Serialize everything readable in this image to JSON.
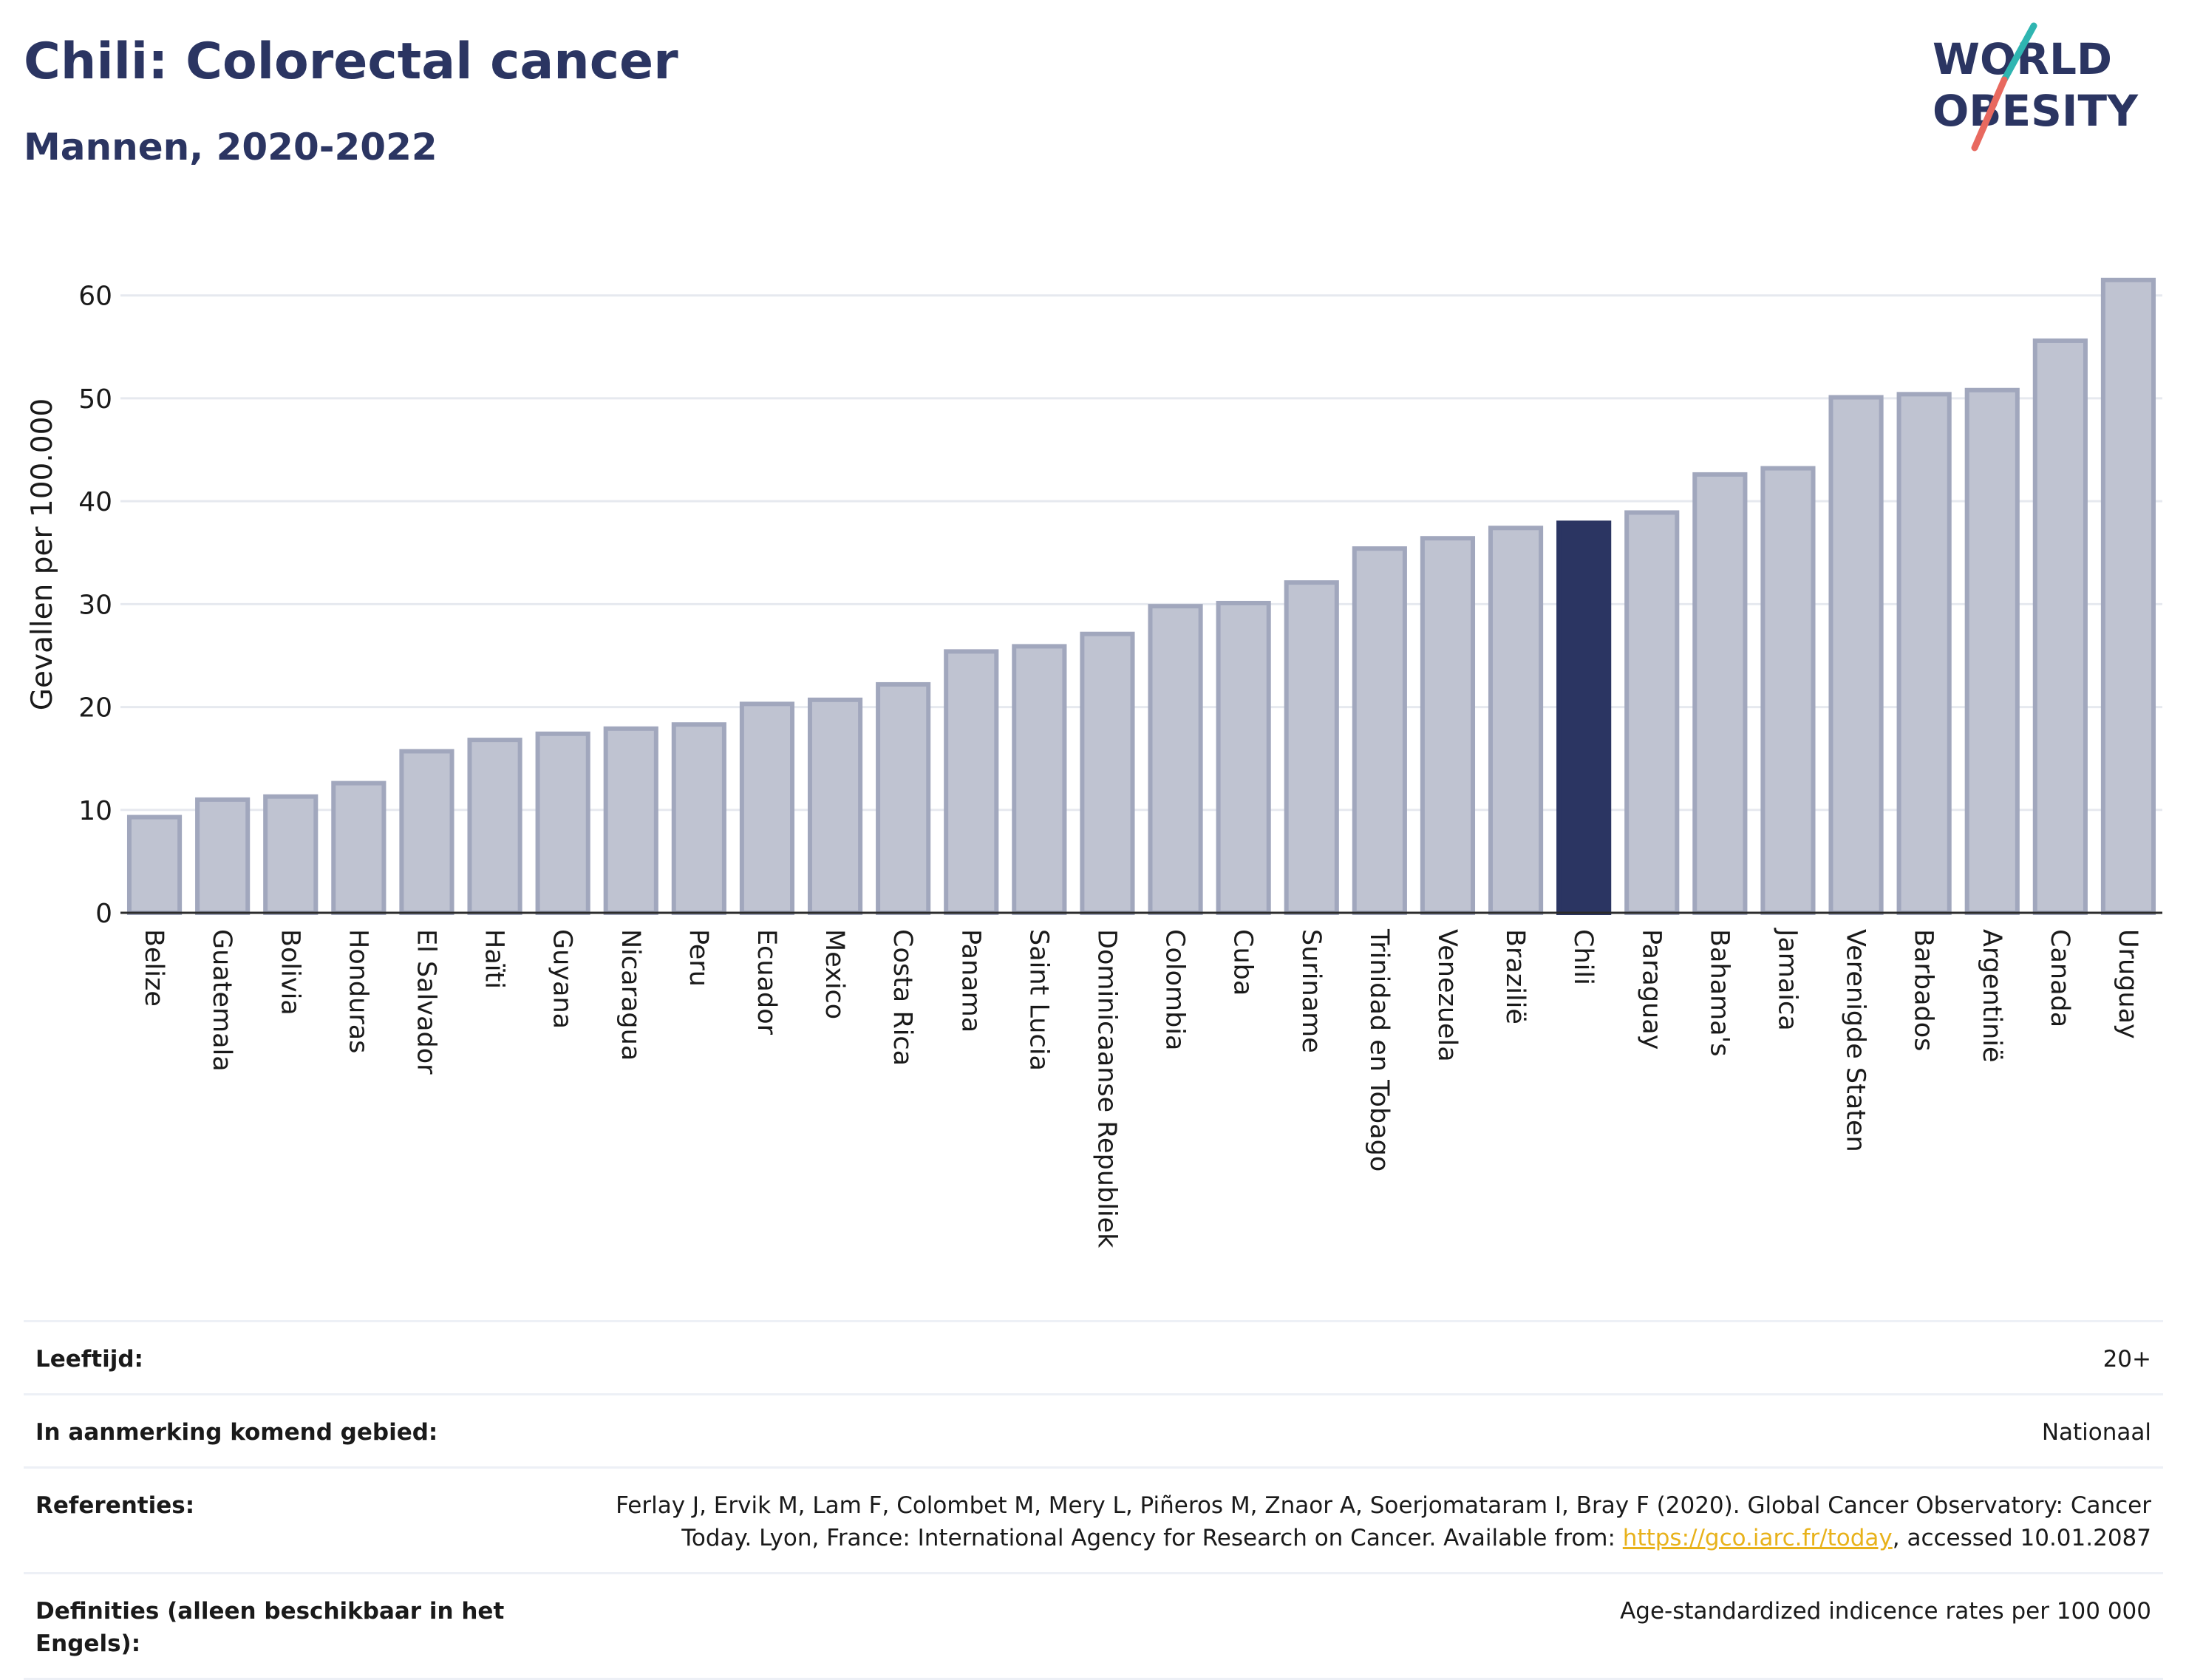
{
  "header": {
    "title": "Chili: Colorectal cancer",
    "subtitle": "Mannen, 2020-2022"
  },
  "logo": {
    "line1": "WORLD",
    "line2": "OBESITY",
    "slash_colors": [
      "#2fb5b1",
      "#e8695f"
    ],
    "text_color": "#2b3562"
  },
  "colors": {
    "bar_default": "#bfc3d1",
    "bar_default_border": "#a1a7bd",
    "bar_highlight": "#2b3562",
    "title": "#2b3562",
    "grid": "#e6e9ef",
    "link": "#e8b21b"
  },
  "chart_data": {
    "type": "bar",
    "title": "Chili: Colorectal cancer",
    "subtitle": "Mannen, 2020-2022",
    "xlabel": "",
    "ylabel": "Gevallen per 100.000",
    "ylim": [
      0,
      64
    ],
    "yticks": [
      0,
      10,
      20,
      30,
      40,
      50,
      60
    ],
    "grid": true,
    "highlight": "Chili",
    "categories": [
      "Belize",
      "Guatemala",
      "Bolivia",
      "Honduras",
      "El Salvador",
      "Haïti",
      "Guyana",
      "Nicaragua",
      "Peru",
      "Ecuador",
      "Mexico",
      "Costa Rica",
      "Panama",
      "Saint Lucia",
      "Dominicaanse Republiek",
      "Colombia",
      "Cuba",
      "Suriname",
      "Trinidad en Tobago",
      "Venezuela",
      "Brazilië",
      "Chili",
      "Paraguay",
      "Bahama's",
      "Jamaica",
      "Verenigde Staten",
      "Barbados",
      "Argentinië",
      "Canada",
      "Uruguay"
    ],
    "values": [
      9.3,
      11.0,
      11.3,
      12.6,
      15.7,
      16.8,
      17.4,
      17.9,
      18.3,
      20.3,
      20.7,
      22.2,
      25.4,
      25.9,
      27.1,
      29.8,
      30.1,
      32.1,
      35.4,
      36.4,
      37.4,
      37.9,
      38.9,
      42.6,
      43.2,
      50.1,
      50.4,
      50.8,
      55.6,
      61.5
    ]
  },
  "info": {
    "age_label": "Leeftijd:",
    "age_value": "20+",
    "area_label": "In aanmerking komend gebied:",
    "area_value": "Nationaal",
    "ref_label": "Referenties:",
    "ref_text_1": "Ferlay J, Ervik M, Lam F, Colombet M, Mery L, Piñeros M, Znaor A, Soerjomataram I, Bray F (2020). Global Cancer Observatory: Cancer Today. Lyon, France: International Agency for Research on Cancer. Available from: ",
    "ref_link": "https://gco.iarc.fr/today",
    "ref_text_2": ", accessed 10.01.2087",
    "def_label": "Definities (alleen beschikbaar in het Engels):",
    "def_value": "Age-standardized indicence rates per 100 000"
  }
}
